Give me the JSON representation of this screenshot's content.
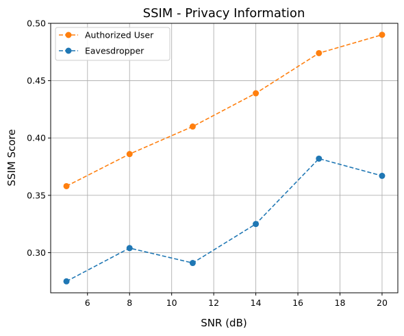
{
  "chart_data": {
    "type": "line",
    "title": "SSIM - Privacy Information",
    "xlabel": "SNR (dB)",
    "ylabel": "SSIM Score",
    "x": [
      5,
      8,
      11,
      14,
      17,
      20
    ],
    "xlim": [
      4.25,
      20.75
    ],
    "ylim": [
      0.265,
      0.5
    ],
    "xticks": [
      6,
      8,
      10,
      12,
      14,
      16,
      18,
      20
    ],
    "yticks": [
      0.3,
      0.35,
      0.4,
      0.45,
      0.5
    ],
    "xtick_labels": [
      "6",
      "8",
      "10",
      "12",
      "14",
      "16",
      "18",
      "20"
    ],
    "ytick_labels": [
      "0.30",
      "0.35",
      "0.40",
      "0.45",
      "0.50"
    ],
    "grid": true,
    "legend_position": "top-left",
    "series": [
      {
        "name": "Authorized User",
        "color": "#ff7f0e",
        "line_style": "dashed",
        "marker": "circle",
        "values": [
          0.358,
          0.386,
          0.41,
          0.439,
          0.474,
          0.49
        ]
      },
      {
        "name": "Eavesdropper",
        "color": "#1f77b4",
        "line_style": "dashed",
        "marker": "circle",
        "values": [
          0.275,
          0.304,
          0.291,
          0.325,
          0.382,
          0.367
        ]
      }
    ]
  }
}
